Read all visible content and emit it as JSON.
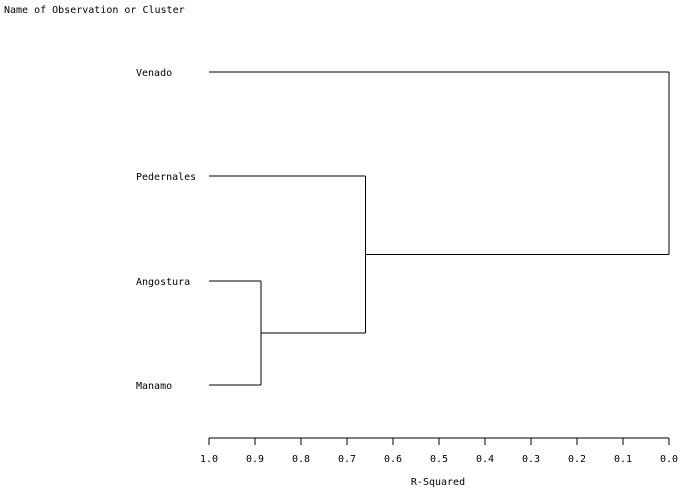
{
  "chart_data": {
    "type": "dendrogram",
    "y_axis_title": "Name of Observation or Cluster",
    "xlabel": "R-Squared",
    "xlim": [
      1.0,
      0.0
    ],
    "ticks": [
      "1.0",
      "0.9",
      "0.8",
      "0.7",
      "0.6",
      "0.5",
      "0.4",
      "0.3",
      "0.2",
      "0.1",
      "0.0"
    ],
    "tick_values": [
      1.0,
      0.9,
      0.8,
      0.7,
      0.6,
      0.5,
      0.4,
      0.3,
      0.2,
      0.1,
      0.0
    ],
    "leaves": [
      "Venado",
      "Pedernales",
      "Angostura",
      "Manamo"
    ],
    "merges": [
      {
        "left": "Angostura",
        "right": "Manamo",
        "r_squared": 0.887
      },
      {
        "left": "Pedernales",
        "right": "Angostura+Manamo",
        "r_squared": 0.66
      },
      {
        "left": "Venado",
        "right": "Pedernales+Angostura+Manamo",
        "r_squared": 0.0
      }
    ]
  }
}
